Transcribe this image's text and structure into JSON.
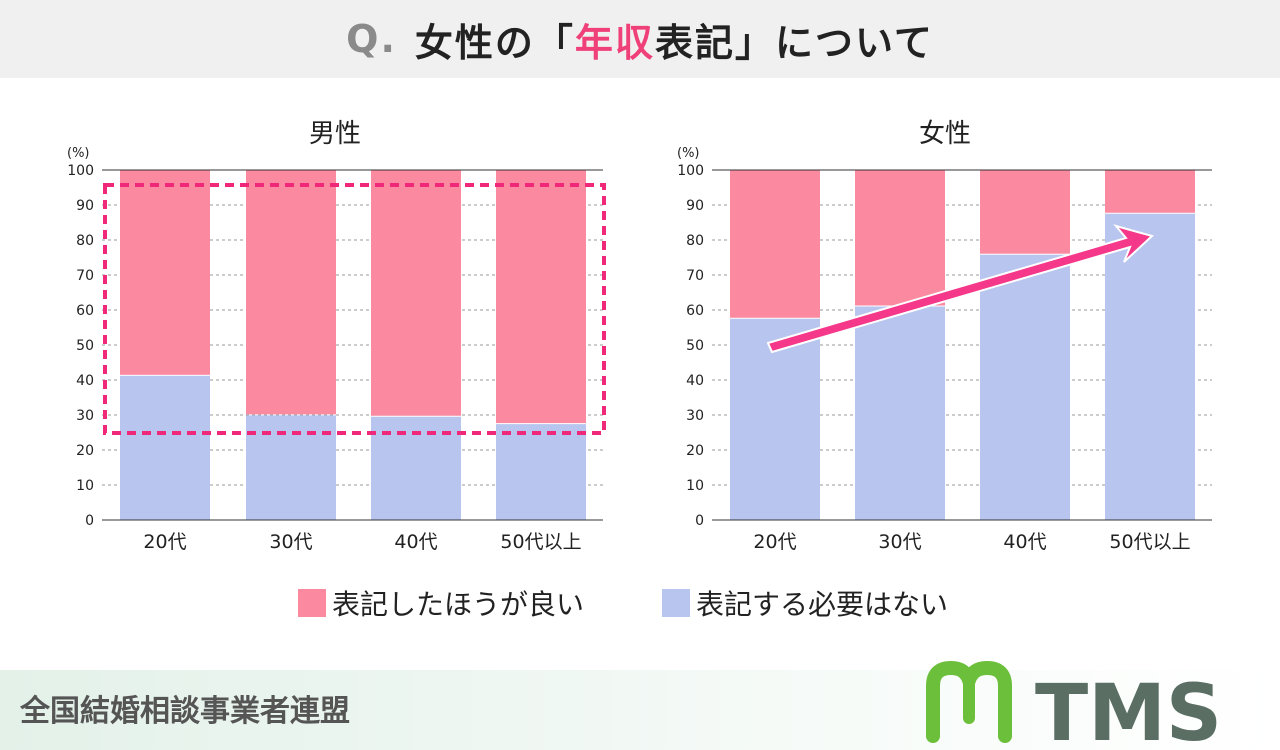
{
  "header": {
    "q": "Q.",
    "title_pre": "女性の「",
    "title_hl": "年収",
    "title_mid": "表記",
    "title_post": "」について"
  },
  "colors": {
    "better": "#fb8aa0",
    "unnecessary": "#b8c6ef",
    "highlight": "#f0287a",
    "accent": "#f0407a"
  },
  "chart_data": [
    {
      "type": "bar",
      "stacked": true,
      "title": "男性",
      "ylabel": "(%)",
      "ylim": [
        0,
        100
      ],
      "yticks": [
        "0",
        "10",
        "20",
        "30",
        "40",
        "50",
        "60",
        "70",
        "80",
        "90",
        "100"
      ],
      "grid": true,
      "categories": [
        "20代",
        "30代",
        "40代",
        "50代以上"
      ],
      "series": [
        {
          "name": "表記する必要はない",
          "values": [
            41.2,
            29.9,
            29.5,
            27.4
          ]
        },
        {
          "name": "表記したほうが良い",
          "values": [
            58.8,
            70.1,
            70.5,
            72.6
          ]
        }
      ],
      "annotation": "dashed-highlight-box"
    },
    {
      "type": "bar",
      "stacked": true,
      "title": "女性",
      "ylabel": "(%)",
      "ylim": [
        0,
        100
      ],
      "yticks": [
        "0",
        "10",
        "20",
        "30",
        "40",
        "50",
        "60",
        "70",
        "80",
        "90",
        "100"
      ],
      "grid": true,
      "categories": [
        "20代",
        "30代",
        "40代",
        "50代以上"
      ],
      "series": [
        {
          "name": "表記する必要はない",
          "values": [
            57.5,
            61.0,
            75.8,
            87.5
          ]
        },
        {
          "name": "表記したほうが良い",
          "values": [
            42.5,
            39.0,
            24.2,
            12.5
          ]
        }
      ],
      "annotation": "upward-trend-arrow"
    }
  ],
  "legend": [
    "表記したほうが良い",
    "表記する必要はない"
  ],
  "footer": {
    "org": "全国結婚相談事業者連盟",
    "logo": "TMS"
  }
}
